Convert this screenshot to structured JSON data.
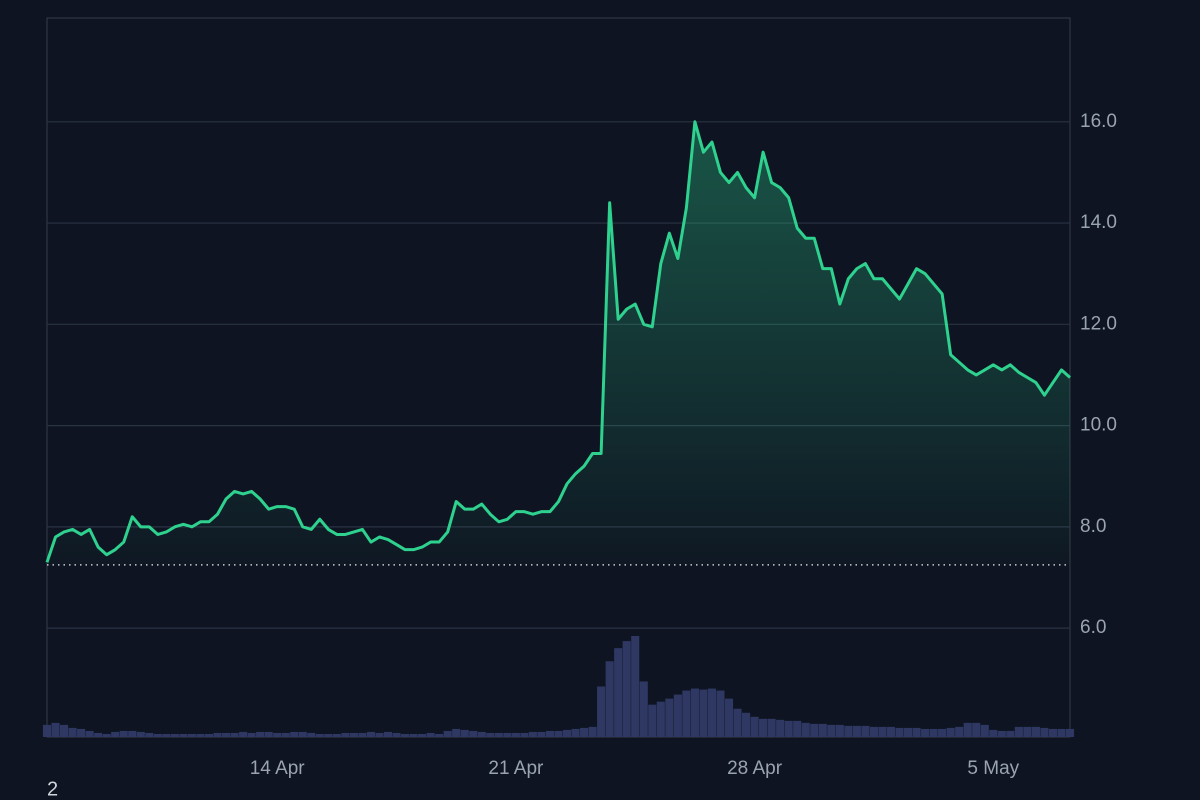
{
  "chart_data": {
    "type": "line",
    "categories": [
      null,
      null,
      null,
      null,
      null,
      null,
      null,
      null,
      null,
      null,
      null,
      null,
      null,
      null,
      null,
      null,
      null,
      null,
      null,
      null,
      null,
      null,
      null,
      null,
      null,
      null,
      null,
      "14 Apr",
      null,
      null,
      null,
      null,
      null,
      null,
      null,
      null,
      null,
      null,
      null,
      null,
      null,
      null,
      null,
      null,
      null,
      null,
      null,
      null,
      null,
      null,
      null,
      null,
      null,
      null,
      null,
      "21 Apr",
      null,
      null,
      null,
      null,
      null,
      null,
      null,
      null,
      null,
      null,
      null,
      null,
      null,
      null,
      null,
      null,
      null,
      null,
      null,
      null,
      null,
      null,
      null,
      null,
      null,
      null,
      null,
      "28 Apr",
      null,
      null,
      null,
      null,
      null,
      null,
      null,
      null,
      null,
      null,
      null,
      null,
      null,
      null,
      null,
      null,
      null,
      null,
      null,
      null,
      null,
      null,
      null,
      null,
      null,
      null,
      null,
      "5 May",
      null,
      null,
      null,
      null,
      null,
      null,
      null,
      null,
      null
    ],
    "series": [
      {
        "name": null,
        "type": "line",
        "color": "#2fd18f",
        "values": [
          7.3,
          7.8,
          7.9,
          7.95,
          7.85,
          7.95,
          7.6,
          7.45,
          7.55,
          7.7,
          8.2,
          8.0,
          8.0,
          7.85,
          7.9,
          8.0,
          8.05,
          8.0,
          8.1,
          8.1,
          8.25,
          8.55,
          8.7,
          8.65,
          8.7,
          8.55,
          8.35,
          8.4,
          8.4,
          8.35,
          8.0,
          7.95,
          8.15,
          7.95,
          7.85,
          7.85,
          7.9,
          7.95,
          7.7,
          7.8,
          7.75,
          7.65,
          7.55,
          7.55,
          7.6,
          7.7,
          7.7,
          7.9,
          8.5,
          8.35,
          8.35,
          8.45,
          8.25,
          8.1,
          8.15,
          8.3,
          8.3,
          8.25,
          8.3,
          8.3,
          8.5,
          8.85,
          9.05,
          9.2,
          9.45,
          9.45,
          14.4,
          12.1,
          12.3,
          12.4,
          12.0,
          11.95,
          13.2,
          13.8,
          13.3,
          14.3,
          16.0,
          15.4,
          15.6,
          15.0,
          14.8,
          15.0,
          14.7,
          14.5,
          15.4,
          14.8,
          14.7,
          14.5,
          13.9,
          13.7,
          13.7,
          13.1,
          13.1,
          12.4,
          12.9,
          13.1,
          13.2,
          12.9,
          12.9,
          12.7,
          12.5,
          12.8,
          13.1,
          13.0,
          12.8,
          12.6,
          11.4,
          11.25,
          11.1,
          11.0,
          11.1,
          11.2,
          11.1,
          11.2,
          11.05,
          10.95,
          10.85,
          10.6,
          10.85,
          11.1,
          10.95
        ]
      },
      {
        "name": null,
        "type": "bar",
        "axis": "y2",
        "color": "#2e3863",
        "values": [
          12,
          14,
          12,
          9,
          8,
          6,
          4,
          3,
          5,
          6,
          6,
          5,
          4,
          3,
          3,
          3,
          3,
          3,
          3,
          3,
          4,
          4,
          4,
          5,
          4,
          5,
          5,
          4,
          4,
          5,
          5,
          4,
          3,
          3,
          3,
          4,
          4,
          4,
          5,
          4,
          5,
          4,
          3,
          3,
          3,
          4,
          3,
          6,
          8,
          7,
          6,
          5,
          4,
          4,
          4,
          4,
          4,
          5,
          5,
          6,
          6,
          7,
          8,
          9,
          10,
          50,
          75,
          88,
          95,
          100,
          55,
          32,
          35,
          38,
          42,
          46,
          48,
          47,
          48,
          46,
          38,
          28,
          24,
          20,
          18,
          18,
          17,
          16,
          16,
          14,
          13,
          13,
          12,
          12,
          11,
          11,
          11,
          10,
          10,
          10,
          9,
          9,
          9,
          8,
          8,
          8,
          9,
          10,
          14,
          14,
          12,
          7,
          6,
          6,
          10,
          10,
          10,
          9,
          8,
          8,
          8
        ]
      }
    ],
    "ylim": [
      3.85,
      18.05
    ],
    "yticks": [
      {
        "value": 6,
        "label": "6.0"
      },
      {
        "value": 8,
        "label": "8.0"
      },
      {
        "value": 10,
        "label": "10.0"
      },
      {
        "value": 12,
        "label": "12.0"
      },
      {
        "value": 14,
        "label": "14.0"
      },
      {
        "value": 16,
        "label": "16.0"
      }
    ],
    "y2lim": [
      0,
      712
    ],
    "grid": true,
    "reference_line": 7.25,
    "footnote": "2"
  }
}
